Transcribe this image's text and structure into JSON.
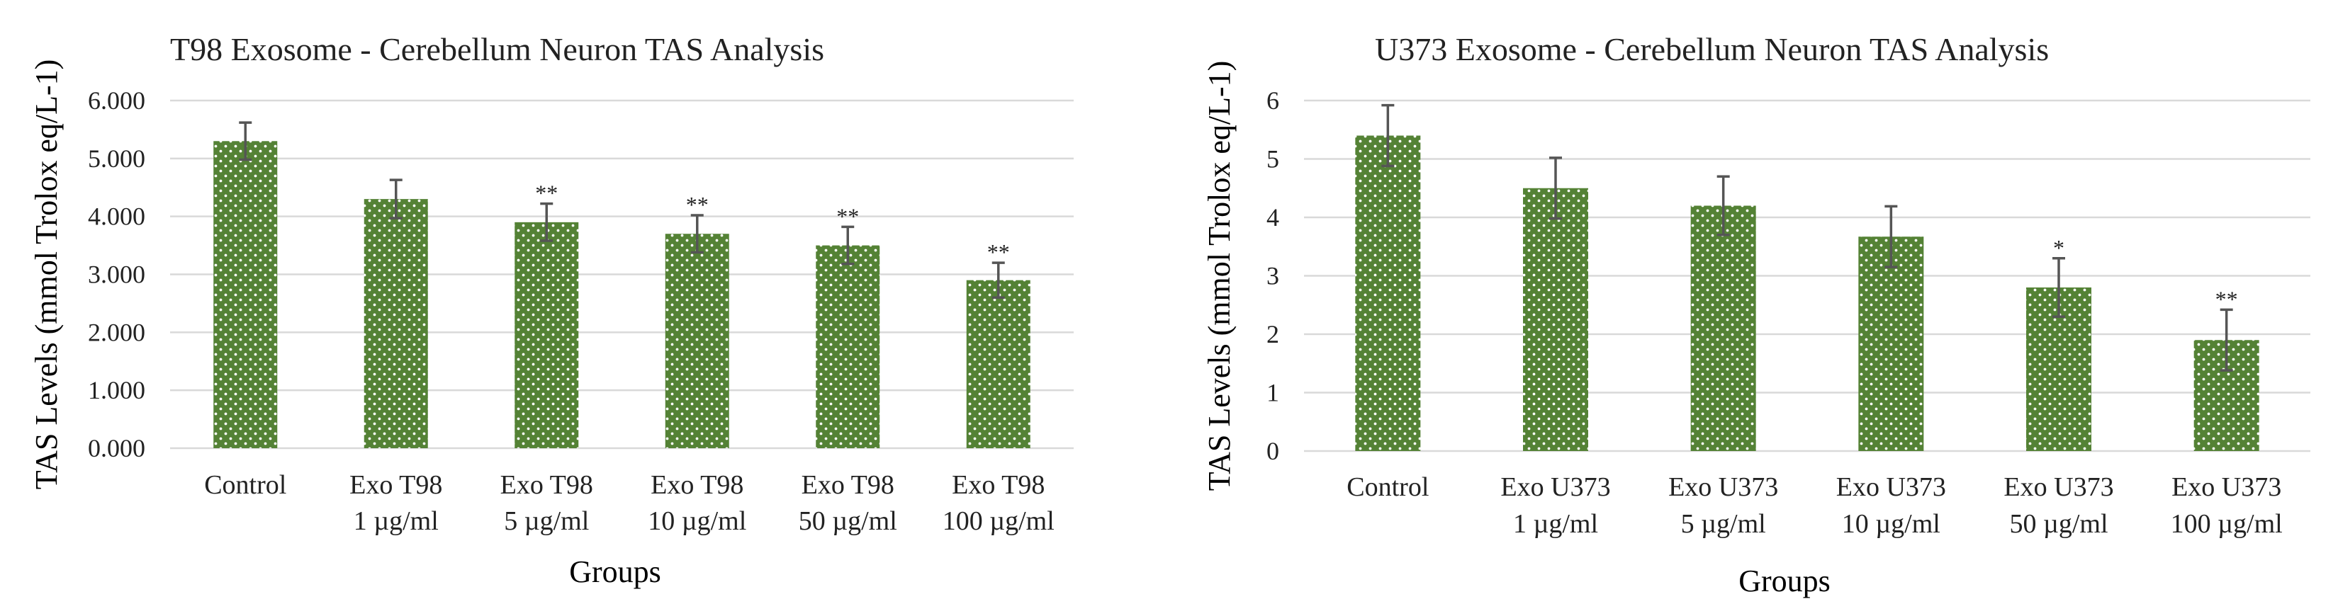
{
  "chart_data": [
    {
      "type": "bar",
      "title": "T98 Exosome - Cerebellum Neuron TAS Analysis",
      "xlabel": "Groups",
      "ylabel": "TAS Levels (mmol Trolox eq/L-1)",
      "ylim": [
        0,
        6
      ],
      "ytick_values": [
        0,
        1,
        2,
        3,
        4,
        5,
        6
      ],
      "ytick_labels": [
        "0.000",
        "1.000",
        "2.000",
        "3.000",
        "4.000",
        "5.000",
        "6.000"
      ],
      "grid": true,
      "categories": [
        [
          "Control"
        ],
        [
          "Exo T98",
          "1 µg/ml"
        ],
        [
          "Exo T98",
          "5 µg/ml"
        ],
        [
          "Exo T98",
          "10 µg/ml"
        ],
        [
          "Exo T98",
          "50 µg/ml"
        ],
        [
          "Exo T98",
          "100 µg/ml"
        ]
      ],
      "values": [
        5.3,
        4.3,
        3.9,
        3.7,
        3.5,
        2.9
      ],
      "errors": [
        0.32,
        0.33,
        0.32,
        0.32,
        0.32,
        0.3
      ],
      "significance": [
        "",
        "",
        "**",
        "**",
        "**",
        "**"
      ],
      "bar_color": "#548235",
      "pattern": "white dots"
    },
    {
      "type": "bar",
      "title": "U373 Exosome - Cerebellum Neuron TAS Analysis",
      "xlabel": "Groups",
      "ylabel": "TAS Levels (mmol Trolox eq/L-1)",
      "ylim": [
        0,
        6
      ],
      "ytick_values": [
        0,
        1,
        2,
        3,
        4,
        5,
        6
      ],
      "ytick_labels": [
        "0",
        "1",
        "2",
        "3",
        "4",
        "5",
        "6"
      ],
      "grid": true,
      "categories": [
        [
          "Control"
        ],
        [
          "Exo U373",
          "1 µg/ml"
        ],
        [
          "Exo U373",
          "5 µg/ml"
        ],
        [
          "Exo U373",
          "10 µg/ml"
        ],
        [
          "Exo U373",
          "50 µg/ml"
        ],
        [
          "Exo U373",
          "100 µg/ml"
        ]
      ],
      "values": [
        5.4,
        4.5,
        4.2,
        3.67,
        2.8,
        1.9
      ],
      "errors": [
        0.52,
        0.52,
        0.5,
        0.52,
        0.5,
        0.52
      ],
      "significance": [
        "",
        "",
        "",
        "",
        "*",
        "**"
      ],
      "bar_color": "#548235",
      "pattern": "white dots"
    }
  ]
}
